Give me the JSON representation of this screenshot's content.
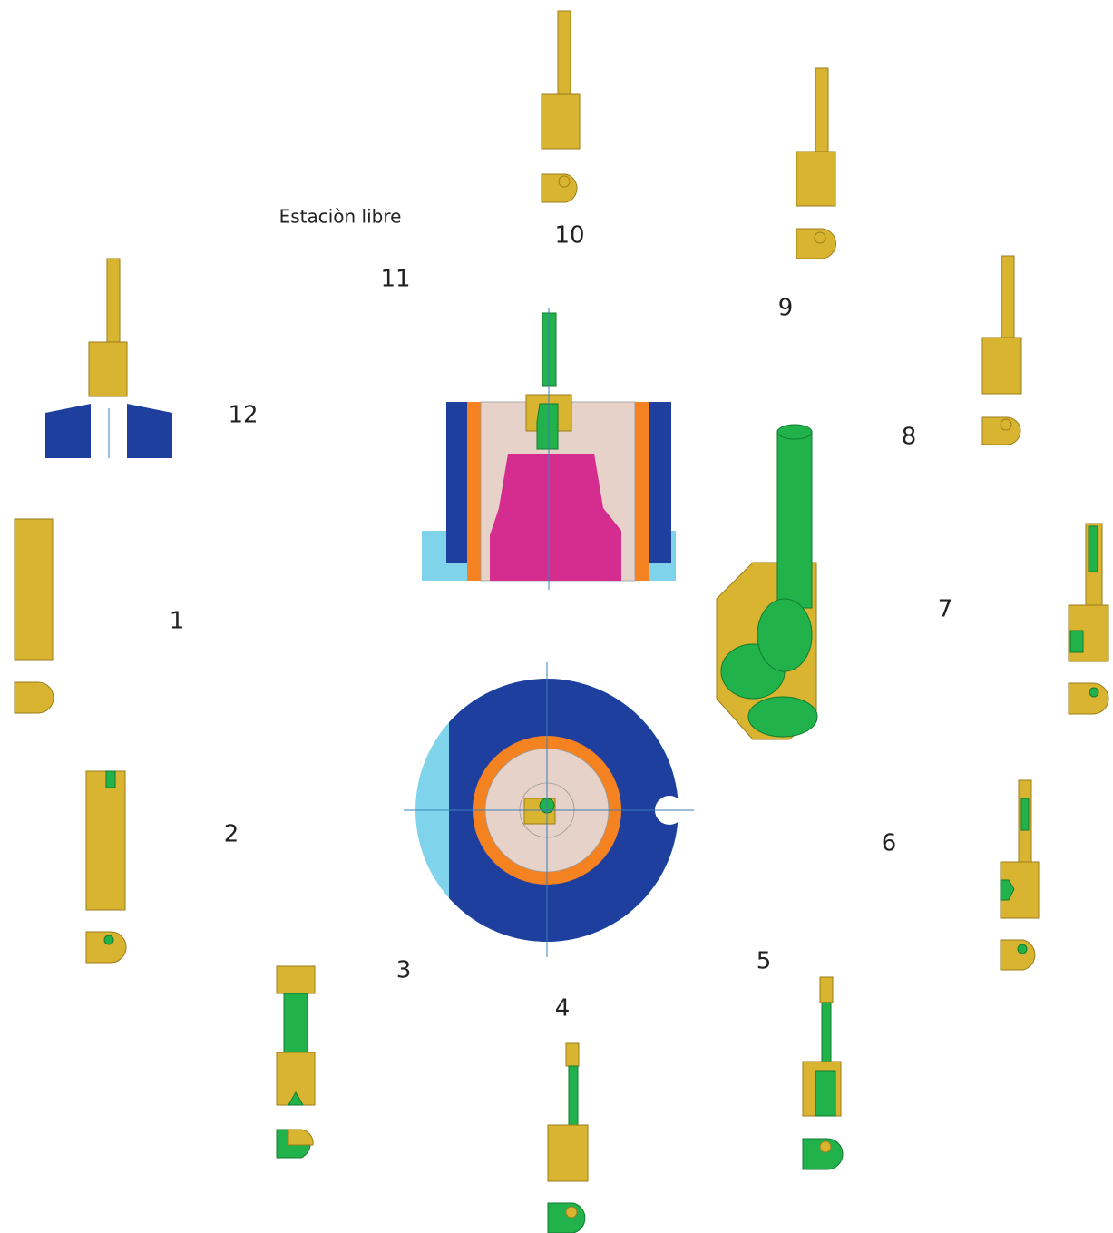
{
  "note": "Estaciòn libre",
  "stations": [
    {
      "label": "1"
    },
    {
      "label": "2"
    },
    {
      "label": "3"
    },
    {
      "label": "4"
    },
    {
      "label": "5"
    },
    {
      "label": "6"
    },
    {
      "label": "7"
    },
    {
      "label": "8"
    },
    {
      "label": "9"
    },
    {
      "label": "10"
    },
    {
      "label": "11"
    },
    {
      "label": "12"
    }
  ]
}
